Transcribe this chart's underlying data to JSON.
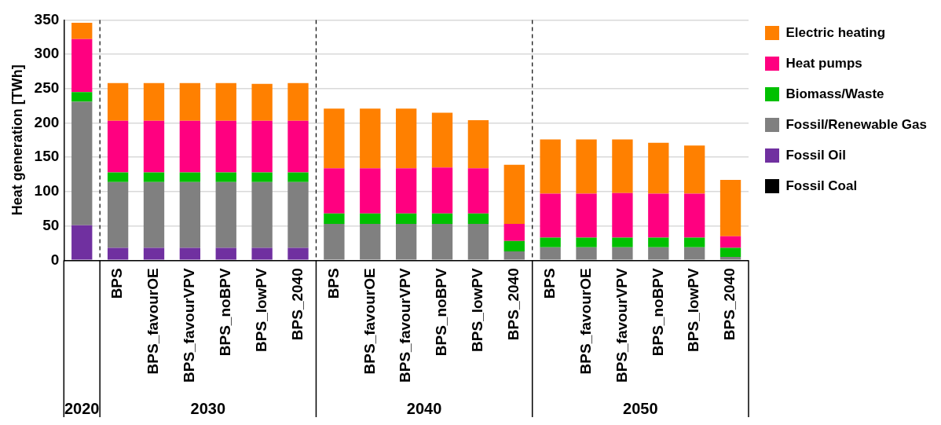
{
  "chart_data": {
    "type": "bar",
    "stacked": true,
    "ylabel": "Heat generation [TWh]",
    "categories": [
      null,
      "BPS",
      "BPS_favourOE",
      "BPS_favourVPV",
      "BPS_noBPV",
      "BPS_lowPV",
      "BPS_2040",
      "BPS",
      "BPS_favourOE",
      "BPS_favourVPV",
      "BPS_noBPV",
      "BPS_lowPV",
      "BPS_2040",
      "BPS",
      "BPS_favourOE",
      "BPS_favourVPV",
      "BPS_noBPV",
      "BPS_lowPV",
      "BPS_2040"
    ],
    "series": [
      {
        "name": "Fossil Coal",
        "color": "#000000",
        "values": [
          0,
          0,
          0,
          0,
          0,
          0,
          0,
          0,
          0,
          0,
          0,
          0,
          0,
          0,
          0,
          0,
          0,
          0,
          0
        ]
      },
      {
        "name": "Fossil Oil",
        "color": "#7030a0",
        "values": [
          51,
          18,
          18,
          18,
          18,
          18,
          18,
          1,
          1,
          1,
          1,
          1,
          0,
          0,
          0,
          0,
          0,
          0,
          0
        ]
      },
      {
        "name": "Fossil/Renewable Gas",
        "color": "#808080",
        "values": [
          180,
          96,
          96,
          96,
          96,
          96,
          96,
          52,
          52,
          52,
          52,
          52,
          13,
          19,
          19,
          19,
          19,
          19,
          5
        ]
      },
      {
        "name": "Biomass/Waste",
        "color": "#00c000",
        "values": [
          14,
          14,
          14,
          14,
          14,
          14,
          14,
          15,
          15,
          15,
          15,
          15,
          15,
          14,
          14,
          14,
          14,
          14,
          13
        ]
      },
      {
        "name": "Heat pumps",
        "color": "#ff0080",
        "values": [
          77,
          75,
          75,
          75,
          75,
          75,
          75,
          66,
          66,
          66,
          67,
          66,
          25,
          64,
          64,
          65,
          64,
          64,
          17
        ]
      },
      {
        "name": "Electric heating",
        "color": "#ff8000",
        "values": [
          24,
          55,
          55,
          55,
          55,
          54,
          55,
          87,
          87,
          87,
          80,
          70,
          86,
          79,
          79,
          78,
          74,
          70,
          82
        ]
      }
    ],
    "ylim": [
      0,
      350
    ],
    "yticks": [
      0,
      50,
      100,
      150,
      200,
      250,
      300,
      350
    ],
    "grid": "y",
    "legend": "right",
    "annotations": [
      "2020",
      "2030",
      "2040",
      "2050"
    ]
  }
}
